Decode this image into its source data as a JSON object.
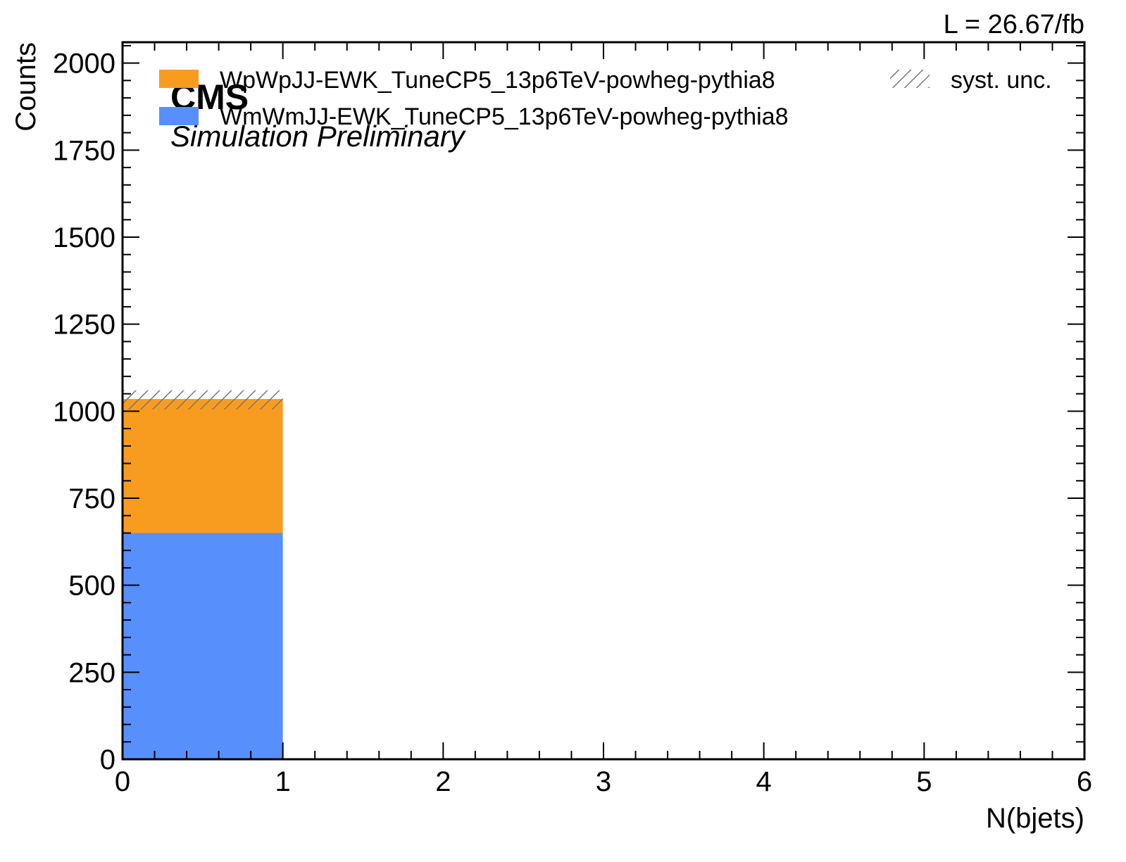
{
  "chart_data": {
    "type": "bar",
    "stacked": true,
    "bin_edges": [
      0,
      1,
      2,
      3,
      4,
      5,
      6
    ],
    "series": [
      {
        "name": "WmWmJJ-EWK_TuneCP5_13p6TeV-powheg-pythia8",
        "color": "#5790fc",
        "values": [
          650,
          0,
          0,
          0,
          0,
          0
        ]
      },
      {
        "name": "WpWpJJ-EWK_TuneCP5_13p6TeV-powheg-pythia8",
        "color": "#f89c20",
        "values": [
          385,
          0,
          0,
          0,
          0,
          0
        ]
      }
    ],
    "uncertainty": {
      "name": "syst. unc.",
      "low": [
        1005,
        0,
        0,
        0,
        0,
        0
      ],
      "high": [
        1060,
        0,
        0,
        0,
        0,
        0
      ]
    },
    "xlabel": "N(bjets)",
    "ylabel": "Counts",
    "xlim": [
      0,
      6
    ],
    "ylim": [
      0,
      2060
    ],
    "xticks": [
      "0",
      "1",
      "2",
      "3",
      "4",
      "5",
      "6"
    ],
    "yticks": [
      "0",
      "250",
      "500",
      "750",
      "1000",
      "1250",
      "1500",
      "1750",
      "2000"
    ],
    "legend_location": "top",
    "grid": false
  },
  "labels": {
    "experiment": "CMS",
    "status": "Simulation Preliminary",
    "lumi": "L = 26.67/fb"
  }
}
